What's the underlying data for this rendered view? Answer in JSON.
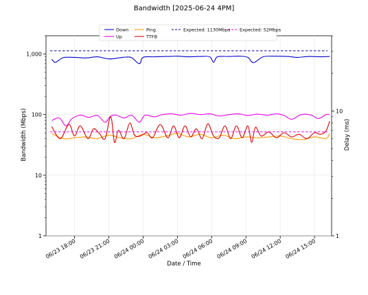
{
  "chart_data": {
    "type": "line",
    "title": "Bandwidth [2025-06-24 4PM]",
    "xlabel": "Date / Time",
    "ylabel": "Bandwidth (Mbps)",
    "y2label": "Delay (ms)",
    "yscale": "log",
    "ylim": [
      1,
      2000
    ],
    "y2scale": "log",
    "y2lim": [
      1,
      40
    ],
    "xlim": [
      "2025-06-23 15:30",
      "2025-06-24 16:30"
    ],
    "x_ticks": [
      "06/23 18:00",
      "06/23 21:00",
      "06/24 00:00",
      "06/24 03:00",
      "06/24 06:00",
      "06/24 09:00",
      "06/24 12:00",
      "06/24 15:00"
    ],
    "y_ticks": [
      "1",
      "10",
      "100",
      "1,000"
    ],
    "y2_ticks": [
      "1",
      "10"
    ],
    "grid": true,
    "legend": "top-center",
    "series": [
      {
        "name": "Down",
        "axis": "left",
        "color": "#0000cc",
        "style": "solid",
        "x": [
          "2025-06-23 16:00",
          "2025-06-23 16:20",
          "2025-06-23 17:00",
          "2025-06-23 18:00",
          "2025-06-23 19:00",
          "2025-06-23 20:00",
          "2025-06-23 21:00",
          "2025-06-23 22:00",
          "2025-06-23 22:30",
          "2025-06-23 23:00",
          "2025-06-23 23:40",
          "2025-06-24 00:00",
          "2025-06-24 01:00",
          "2025-06-24 02:00",
          "2025-06-24 03:00",
          "2025-06-24 04:00",
          "2025-06-24 05:00",
          "2025-06-24 05:50",
          "2025-06-24 06:10",
          "2025-06-24 06:30",
          "2025-06-24 07:30",
          "2025-06-24 08:30",
          "2025-06-24 09:10",
          "2025-06-24 09:40",
          "2025-06-24 10:30",
          "2025-06-24 11:30",
          "2025-06-24 12:40",
          "2025-06-24 13:30",
          "2025-06-24 14:30",
          "2025-06-24 15:30",
          "2025-06-24 16:20"
        ],
        "values": [
          820,
          730,
          870,
          880,
          860,
          900,
          830,
          870,
          890,
          870,
          690,
          880,
          900,
          910,
          920,
          900,
          910,
          900,
          730,
          900,
          910,
          920,
          880,
          720,
          900,
          920,
          910,
          880,
          910,
          900,
          910
        ]
      },
      {
        "name": "Up",
        "axis": "left",
        "color": "#ee00ee",
        "style": "solid",
        "x": [
          "2025-06-23 16:00",
          "2025-06-23 16:40",
          "2025-06-23 17:15",
          "2025-06-23 17:45",
          "2025-06-23 18:30",
          "2025-06-23 19:15",
          "2025-06-23 20:00",
          "2025-06-23 20:40",
          "2025-06-23 21:10",
          "2025-06-23 21:40",
          "2025-06-23 22:20",
          "2025-06-23 23:00",
          "2025-06-23 23:40",
          "2025-06-24 00:10",
          "2025-06-24 01:00",
          "2025-06-24 01:40",
          "2025-06-24 02:30",
          "2025-06-24 03:20",
          "2025-06-24 04:10",
          "2025-06-24 05:00",
          "2025-06-24 05:50",
          "2025-06-24 06:40",
          "2025-06-24 07:30",
          "2025-06-24 08:20",
          "2025-06-24 09:10",
          "2025-06-24 10:00",
          "2025-06-24 10:50",
          "2025-06-24 11:40",
          "2025-06-24 12:20",
          "2025-06-24 13:00",
          "2025-06-24 13:50",
          "2025-06-24 14:40",
          "2025-06-24 15:20",
          "2025-06-24 16:00",
          "2025-06-24 16:20"
        ],
        "values": [
          80,
          88,
          65,
          85,
          98,
          90,
          97,
          75,
          95,
          98,
          88,
          98,
          75,
          98,
          92,
          100,
          103,
          98,
          105,
          100,
          103,
          95,
          100,
          103,
          97,
          102,
          98,
          103,
          97,
          84,
          100,
          99,
          86,
          100,
          100
        ]
      },
      {
        "name": "Ping",
        "axis": "right",
        "color": "#ff9900",
        "style": "solid",
        "x": [
          "2025-06-23 16:00",
          "2025-06-23 17:00",
          "2025-06-23 18:00",
          "2025-06-23 19:00",
          "2025-06-23 20:00",
          "2025-06-23 21:00",
          "2025-06-23 22:00",
          "2025-06-23 23:00",
          "2025-06-24 00:00",
          "2025-06-24 01:00",
          "2025-06-24 02:00",
          "2025-06-24 03:00",
          "2025-06-24 04:00",
          "2025-06-24 05:00",
          "2025-06-24 06:00",
          "2025-06-24 07:00",
          "2025-06-24 08:00",
          "2025-06-24 09:00",
          "2025-06-24 10:00",
          "2025-06-24 11:00",
          "2025-06-24 12:00",
          "2025-06-24 13:00",
          "2025-06-24 14:00",
          "2025-06-24 15:00",
          "2025-06-24 16:00",
          "2025-06-24 16:20"
        ],
        "values": [
          6.6,
          6.0,
          6.1,
          6.2,
          6.0,
          6.4,
          6.1,
          6.0,
          6.5,
          6.1,
          6.3,
          6.6,
          6.2,
          6.5,
          6.1,
          6.4,
          6.0,
          6.2,
          6.1,
          6.2,
          6.3,
          6.0,
          5.9,
          6.2,
          6.0,
          6.6
        ]
      },
      {
        "name": "TTFB",
        "axis": "right",
        "color": "#dd0000",
        "style": "solid",
        "x": [
          "2025-06-23 16:00",
          "2025-06-23 16:45",
          "2025-06-23 17:30",
          "2025-06-23 18:00",
          "2025-06-23 18:30",
          "2025-06-23 19:10",
          "2025-06-23 19:40",
          "2025-06-23 20:10",
          "2025-06-23 20:40",
          "2025-06-23 21:10",
          "2025-06-23 21:30",
          "2025-06-23 21:50",
          "2025-06-23 22:20",
          "2025-06-23 22:50",
          "2025-06-23 23:15",
          "2025-06-23 23:45",
          "2025-06-24 00:20",
          "2025-06-24 00:50",
          "2025-06-24 01:30",
          "2025-06-24 02:10",
          "2025-06-24 02:40",
          "2025-06-24 03:10",
          "2025-06-24 03:40",
          "2025-06-24 04:10",
          "2025-06-24 04:40",
          "2025-06-24 05:10",
          "2025-06-24 05:40",
          "2025-06-24 06:10",
          "2025-06-24 06:40",
          "2025-06-24 07:10",
          "2025-06-24 07:40",
          "2025-06-24 08:10",
          "2025-06-24 08:40",
          "2025-06-24 09:10",
          "2025-06-24 09:30",
          "2025-06-24 09:50",
          "2025-06-24 10:20",
          "2025-06-24 11:00",
          "2025-06-24 11:40",
          "2025-06-24 12:20",
          "2025-06-24 13:00",
          "2025-06-24 13:40",
          "2025-06-24 14:20",
          "2025-06-24 15:00",
          "2025-06-24 15:30",
          "2025-06-24 16:00",
          "2025-06-24 16:20"
        ],
        "values": [
          7.5,
          6.0,
          7.8,
          6.3,
          7.6,
          6.0,
          7.2,
          6.6,
          6.0,
          9.0,
          5.6,
          7.0,
          6.0,
          8.0,
          6.4,
          6.3,
          6.7,
          6.1,
          7.8,
          6.1,
          7.6,
          6.1,
          7.6,
          6.2,
          7.2,
          6.0,
          7.9,
          6.3,
          6.1,
          7.6,
          6.0,
          7.6,
          6.1,
          7.6,
          5.6,
          7.4,
          6.3,
          6.8,
          6.1,
          6.7,
          6.2,
          6.5,
          6.0,
          6.7,
          6.5,
          6.9,
          8.3
        ]
      },
      {
        "name": "Expected: 1130Mbps",
        "axis": "left",
        "color": "#000099",
        "style": "dashed",
        "constant": 1130
      },
      {
        "name": "Expected: 52Mbps",
        "axis": "left",
        "color": "#ee00ee",
        "style": "dashed",
        "constant": 52
      }
    ]
  }
}
